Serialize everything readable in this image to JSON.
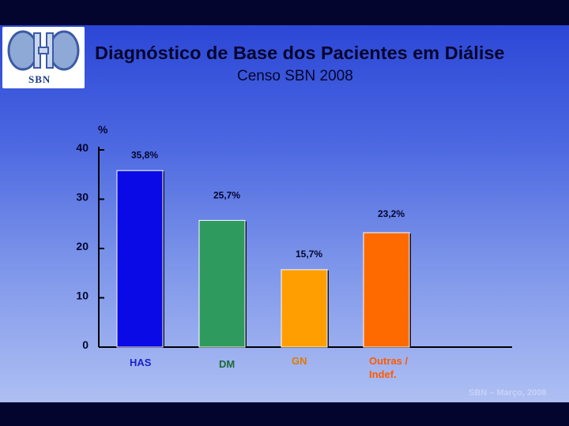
{
  "slide": {
    "title": "Diagnóstico de Base dos Pacientes em Diálise",
    "subtitle": "Censo SBN 2008",
    "logo_text": "SBN",
    "footer": "SBN – Março, 2008"
  },
  "chart_data": {
    "type": "bar",
    "ylabel": "%",
    "ylim": [
      0,
      40
    ],
    "yticks": [
      "0",
      "10",
      "20",
      "30",
      "40"
    ],
    "categories": [
      "HAS",
      "DM",
      "GN",
      "Outras /\nIndef."
    ],
    "values": [
      35.8,
      25.7,
      15.7,
      23.2
    ],
    "data_labels": [
      "35,8%",
      "25,7%",
      "15,7%",
      "23,2%"
    ],
    "colors": [
      "#0a0ae6",
      "#2e9a5e",
      "#ff9e00",
      "#ff6a00"
    ],
    "category_label_colors": [
      "#1a22c8",
      "#1c6a3a",
      "#e07a00",
      "#ff5a00"
    ],
    "grid": false
  }
}
